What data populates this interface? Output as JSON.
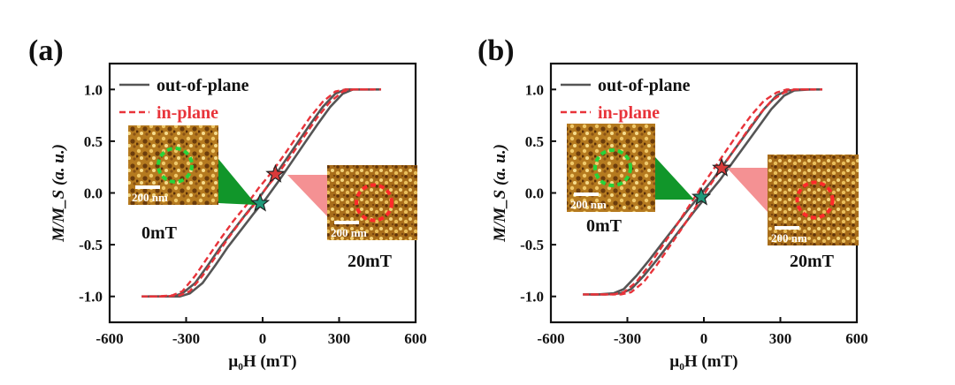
{
  "chart_data": [
    {
      "type": "line",
      "panel_label": "(a)",
      "xlabel": "μ₀H (mT)",
      "ylabel": "M/M_S (a. u.)",
      "xlim": [
        -600,
        600
      ],
      "ylim": [
        -1.25,
        1.25
      ],
      "x_ticks": [
        -600,
        -300,
        0,
        300,
        600
      ],
      "x_tick_labels": [
        "-600",
        "-300",
        "0",
        "300",
        "600"
      ],
      "y_ticks": [
        -1.0,
        -0.5,
        0.0,
        0.5,
        1.0
      ],
      "y_tick_labels": [
        "-1.0",
        "-0.5",
        "0.0",
        "0.5",
        "1.0"
      ],
      "legend": [
        "out-of-plane",
        "in-plane"
      ],
      "series": [
        {
          "name": "out-of-plane",
          "style": "solid",
          "color": "#555555",
          "x": [
            -460,
            -400,
            -340,
            -300,
            -250,
            -200,
            -150,
            -100,
            -50,
            0,
            50,
            100,
            150,
            200,
            250,
            300,
            340,
            400,
            450
          ],
          "y": [
            -1.0,
            -1.0,
            -1.0,
            -0.97,
            -0.87,
            -0.7,
            -0.52,
            -0.36,
            -0.2,
            -0.05,
            0.12,
            0.3,
            0.48,
            0.66,
            0.83,
            0.96,
            1.0,
            1.0,
            1.0
          ]
        },
        {
          "name": "in-plane",
          "style": "dashed",
          "color": "#e8333a",
          "x": [
            -460,
            -400,
            -340,
            -300,
            -250,
            -200,
            -150,
            -100,
            -50,
            0,
            50,
            100,
            150,
            200,
            250,
            300,
            340,
            400,
            450
          ],
          "y": [
            -1.0,
            -1.0,
            -0.99,
            -0.95,
            -0.8,
            -0.62,
            -0.44,
            -0.27,
            -0.12,
            0.05,
            0.2,
            0.37,
            0.55,
            0.73,
            0.88,
            0.98,
            1.0,
            1.0,
            1.0
          ]
        }
      ],
      "markers": [
        {
          "field": 50,
          "value": 0.18,
          "color": "#d93a3a",
          "label": "20mT"
        },
        {
          "field": -10,
          "value": -0.1,
          "color": "#1f9a7a",
          "label": "0mT"
        }
      ],
      "insets": [
        {
          "caption": "0mT",
          "scale_bar": "200 nm",
          "ring_color": "#27d43a",
          "pointer_color": "#11962a"
        },
        {
          "caption": "20mT",
          "scale_bar": "200 nm",
          "ring_color": "#ff2a2a",
          "pointer_color": "#f27e80"
        }
      ]
    },
    {
      "type": "line",
      "panel_label": "(b)",
      "xlabel": "μ₀H (mT)",
      "ylabel": "M/M_S (a. u.)",
      "xlim": [
        -600,
        600
      ],
      "ylim": [
        -1.25,
        1.25
      ],
      "x_ticks": [
        -600,
        -300,
        0,
        300,
        600
      ],
      "x_tick_labels": [
        "-600",
        "-300",
        "0",
        "300",
        "600"
      ],
      "y_ticks": [
        -1.0,
        -0.5,
        0.0,
        0.5,
        1.0
      ],
      "y_tick_labels": [
        "-1.0",
        "-0.5",
        "0.0",
        "0.5",
        "1.0"
      ],
      "legend": [
        "out-of-plane",
        "in-plane"
      ],
      "series": [
        {
          "name": "out-of-plane",
          "style": "solid",
          "color": "#555555",
          "x": [
            -460,
            -400,
            -340,
            -300,
            -250,
            -200,
            -150,
            -100,
            -50,
            0,
            50,
            100,
            150,
            200,
            250,
            300,
            340,
            400,
            450
          ],
          "y": [
            -0.98,
            -0.98,
            -0.97,
            -0.93,
            -0.8,
            -0.65,
            -0.49,
            -0.33,
            -0.17,
            -0.02,
            0.13,
            0.3,
            0.47,
            0.64,
            0.81,
            0.94,
            0.99,
            1.0,
            1.0
          ]
        },
        {
          "name": "in-plane",
          "style": "dashed",
          "color": "#e8333a",
          "x": [
            -460,
            -400,
            -340,
            -300,
            -250,
            -200,
            -150,
            -100,
            -50,
            0,
            50,
            100,
            150,
            200,
            250,
            300,
            340,
            400,
            450
          ],
          "y": [
            -0.98,
            -0.98,
            -0.98,
            -0.96,
            -0.86,
            -0.7,
            -0.52,
            -0.34,
            -0.15,
            0.04,
            0.22,
            0.4,
            0.58,
            0.75,
            0.89,
            0.97,
            1.0,
            1.0,
            1.0
          ]
        }
      ],
      "markers": [
        {
          "field": 70,
          "value": 0.24,
          "color": "#d93a3a",
          "label": "20mT"
        },
        {
          "field": -10,
          "value": -0.04,
          "color": "#1f9a7a",
          "label": "0mT"
        }
      ],
      "insets": [
        {
          "caption": "0mT",
          "scale_bar": "200 nm",
          "ring_color": "#27d43a",
          "pointer_color": "#11962a"
        },
        {
          "caption": "20mT",
          "scale_bar": "200 nm",
          "ring_color": "#ff2a2a",
          "pointer_color": "#f27e80"
        }
      ]
    }
  ]
}
